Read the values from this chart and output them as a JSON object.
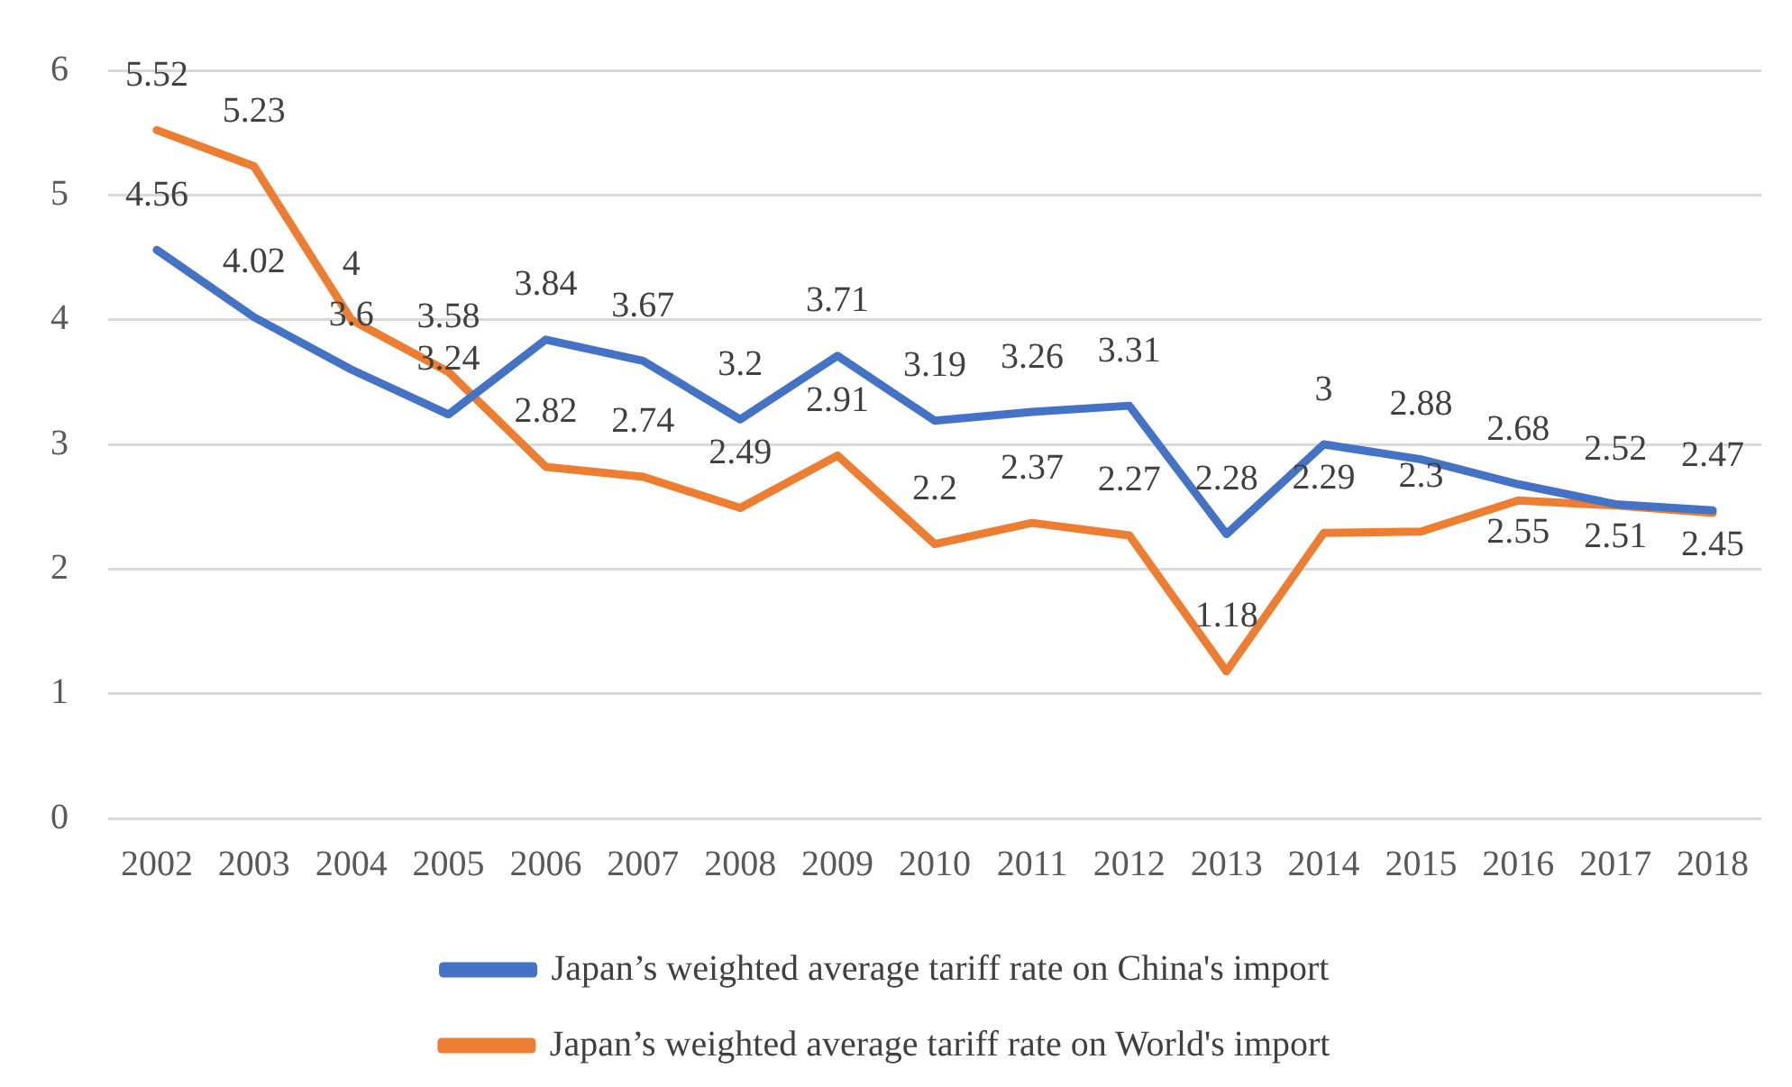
{
  "chart_data": {
    "type": "line",
    "categories": [
      "2002",
      "2003",
      "2004",
      "2005",
      "2006",
      "2007",
      "2008",
      "2009",
      "2010",
      "2011",
      "2012",
      "2013",
      "2014",
      "2015",
      "2016",
      "2017",
      "2018"
    ],
    "series": [
      {
        "name": "Japan’s weighted average tariff rate on China's import",
        "color": "#4472c4",
        "values": [
          4.56,
          4.02,
          3.6,
          3.24,
          3.84,
          3.67,
          3.2,
          3.71,
          3.19,
          3.26,
          3.31,
          2.28,
          3,
          2.88,
          2.68,
          2.52,
          2.47
        ]
      },
      {
        "name": "Japan’s weighted average tariff rate on World's import",
        "color": "#ed7d31",
        "values": [
          5.52,
          5.23,
          4,
          3.58,
          2.82,
          2.74,
          2.49,
          2.91,
          2.2,
          2.37,
          2.27,
          1.18,
          2.29,
          2.3,
          2.55,
          2.51,
          2.45
        ]
      }
    ],
    "ylim": [
      0,
      6
    ],
    "yticks": [
      0,
      1,
      2,
      3,
      4,
      5,
      6
    ],
    "grid": "y",
    "legend": "bottom",
    "data_labels": true
  }
}
